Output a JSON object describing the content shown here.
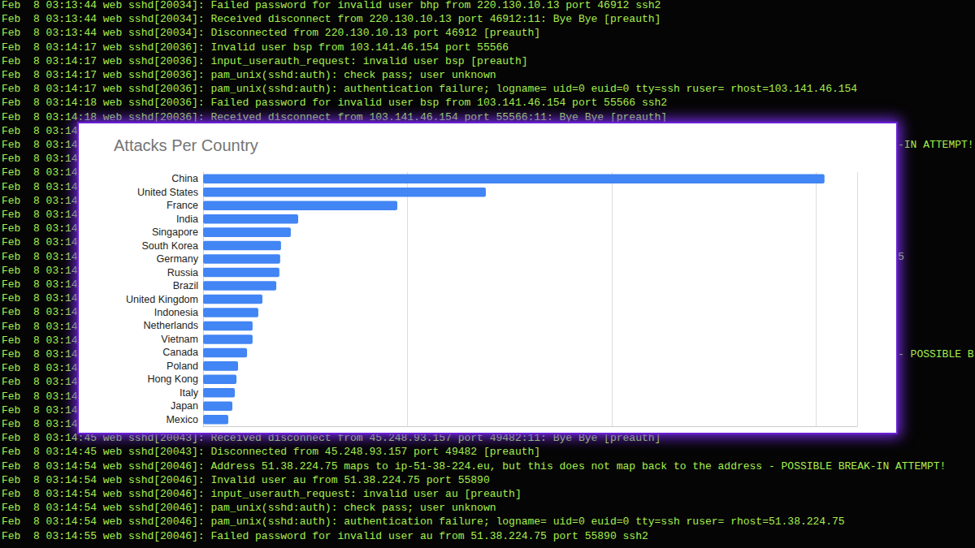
{
  "chart_data": {
    "type": "bar",
    "title": "Attacks Per Country",
    "orientation": "horizontal",
    "categories": [
      "China",
      "United States",
      "France",
      "India",
      "Singapore",
      "South Korea",
      "Germany",
      "Russia",
      "Brazil",
      "United Kingdom",
      "Indonesia",
      "Netherlands",
      "Vietnam",
      "Canada",
      "Poland",
      "Hong Kong",
      "Italy",
      "Japan",
      "Mexico"
    ],
    "values": [
      3040,
      1383,
      950,
      465,
      429,
      381,
      377,
      373,
      358,
      290,
      270,
      242,
      242,
      215,
      171,
      163,
      155,
      143,
      123
    ],
    "color": "#4285f4",
    "xlim": [
      0,
      3200
    ],
    "xticks": [
      0,
      1000,
      2000,
      3000
    ],
    "grid": true,
    "tick_labels": "y"
  },
  "terminal": {
    "lines": [
      "Feb  8 03:13:44 web sshd[20034]: Failed password for invalid user bhp from 220.130.10.13 port 46912 ssh2",
      "Feb  8 03:13:44 web sshd[20034]: Received disconnect from 220.130.10.13 port 46912:11: Bye Bye [preauth]",
      "Feb  8 03:13:44 web sshd[20034]: Disconnected from 220.130.10.13 port 46912 [preauth]",
      "Feb  8 03:14:17 web sshd[20036]: Invalid user bsp from 103.141.46.154 port 55566",
      "Feb  8 03:14:17 web sshd[20036]: input_userauth_request: invalid user bsp [preauth]",
      "Feb  8 03:14:17 web sshd[20036]: pam_unix(sshd:auth): check pass; user unknown",
      "Feb  8 03:14:17 web sshd[20036]: pam_unix(sshd:auth): authentication failure; logname= uid=0 euid=0 tty=ssh ruser= rhost=103.141.46.154",
      "Feb  8 03:14:18 web sshd[20036]: Failed password for invalid user bsp from 103.141.46.154 port 55566 ssh2",
      "Feb  8 03:14:18 web sshd[20036]: Received disconnect from 103.141.46.154 port 55566:11: Bye Bye [preauth]",
      {
        "left": "Feb  8 03:14"
      },
      {
        "left": "Feb  8 03:14",
        "right": "-IN ATTEMPT!"
      },
      {
        "left": "Feb  8 03:14"
      },
      {
        "left": "Feb  8 03:14"
      },
      {
        "left": "Feb  8 03:14"
      },
      {
        "left": "Feb  8 03:14"
      },
      {
        "left": "Feb  8 03:14"
      },
      {
        "left": "Feb  8 03:14"
      },
      {
        "left": "Feb  8 03:14"
      },
      {
        "left": "Feb  8 03:14",
        "right": "5"
      },
      {
        "left": "Feb  8 03:14"
      },
      {
        "left": "Feb  8 03:14"
      },
      {
        "left": "Feb  8 03:14"
      },
      {
        "left": "Feb  8 03:14"
      },
      {
        "left": "Feb  8 03:14"
      },
      {
        "left": "Feb  8 03:14"
      },
      {
        "left": "Feb  8 03:14",
        "right": "- POSSIBLE B"
      },
      {
        "left": "Feb  8 03:14"
      },
      {
        "left": "Feb  8 03:14"
      },
      {
        "left": "Feb  8 03:14"
      },
      {
        "left": "Feb  8 03:14"
      },
      {
        "left": "Feb  8 03:14"
      },
      "Feb  8 03:14:45 web sshd[20043]: Received disconnect from 45.248.93.157 port 49482:11: Bye Bye [preauth]",
      "Feb  8 03:14:45 web sshd[20043]: Disconnected from 45.248.93.157 port 49482 [preauth]",
      "Feb  8 03:14:54 web sshd[20046]: Address 51.38.224.75 maps to ip-51-38-224.eu, but this does not map back to the address - POSSIBLE BREAK-IN ATTEMPT!",
      "Feb  8 03:14:54 web sshd[20046]: Invalid user au from 51.38.224.75 port 55890",
      "Feb  8 03:14:54 web sshd[20046]: input_userauth_request: invalid user au [preauth]",
      "Feb  8 03:14:54 web sshd[20046]: pam_unix(sshd:auth): check pass; user unknown",
      "Feb  8 03:14:54 web sshd[20046]: pam_unix(sshd:auth): authentication failure; logname= uid=0 euid=0 tty=ssh ruser= rhost=51.38.224.75",
      "Feb  8 03:14:55 web sshd[20046]: Failed password for invalid user au from 51.38.224.75 port 55890 ssh2"
    ]
  }
}
